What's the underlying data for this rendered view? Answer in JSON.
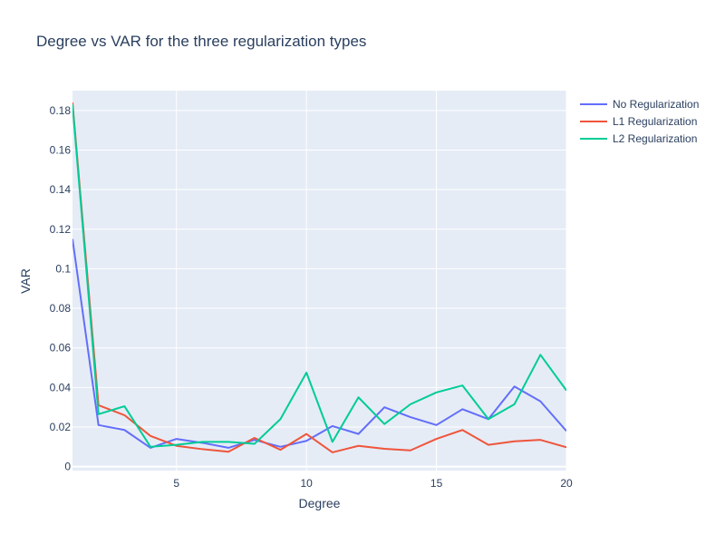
{
  "chart_data": {
    "type": "line",
    "title": "Degree vs VAR for the three regularization types",
    "xlabel": "Degree",
    "ylabel": "VAR",
    "xlim": [
      1,
      20
    ],
    "ylim": [
      -0.002,
      0.19
    ],
    "x_ticks": [
      5,
      10,
      15,
      20
    ],
    "y_ticks": [
      0,
      0.02,
      0.04,
      0.06,
      0.08,
      0.1,
      0.12,
      0.14,
      0.16,
      0.18
    ],
    "grid": true,
    "legend_position": "top-right",
    "x": [
      1,
      2,
      3,
      4,
      5,
      6,
      7,
      8,
      9,
      10,
      11,
      12,
      13,
      14,
      15,
      16,
      17,
      18,
      19,
      20
    ],
    "series": [
      {
        "name": "No Regularization",
        "color": "#636efa",
        "values": [
          0.115,
          0.021,
          0.0185,
          0.0095,
          0.014,
          0.012,
          0.0095,
          0.0135,
          0.01,
          0.013,
          0.0205,
          0.0165,
          0.03,
          0.025,
          0.021,
          0.029,
          0.024,
          0.0405,
          0.033,
          0.018
        ]
      },
      {
        "name": "L1 Regularization",
        "color": "#ef553b",
        "values": [
          0.184,
          0.031,
          0.026,
          0.0155,
          0.0105,
          0.0088,
          0.0075,
          0.0145,
          0.0085,
          0.0165,
          0.0072,
          0.0105,
          0.009,
          0.0082,
          0.014,
          0.0185,
          0.011,
          0.0128,
          0.0135,
          0.0098
        ]
      },
      {
        "name": "L2 Regularization",
        "color": "#00cc96",
        "values": [
          0.183,
          0.0265,
          0.0305,
          0.01,
          0.011,
          0.0125,
          0.0125,
          0.0115,
          0.024,
          0.0475,
          0.0125,
          0.035,
          0.0215,
          0.0315,
          0.0375,
          0.041,
          0.024,
          0.0315,
          0.0565,
          0.0385
        ]
      }
    ]
  },
  "colors": {
    "plot_background": "#e5ecf6",
    "grid": "#ffffff",
    "text": "#2a3f5f"
  }
}
